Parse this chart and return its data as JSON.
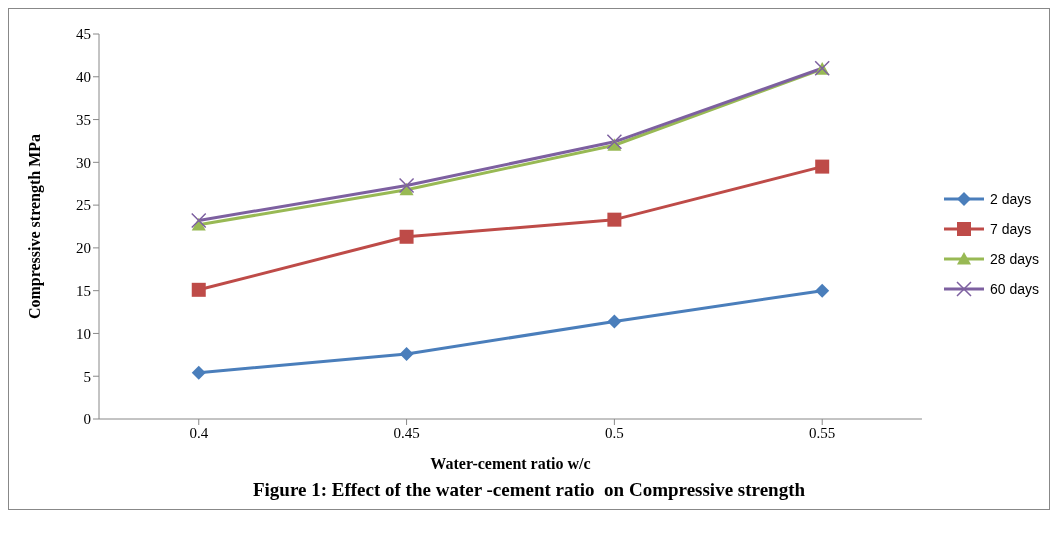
{
  "chart_data": {
    "type": "line",
    "xlabel": "Water-cement ratio w/c",
    "ylabel": "Compressive strength   MPa",
    "categories": [
      "0.4",
      "0.45",
      "0.5",
      "0.55"
    ],
    "series": [
      {
        "name": "2 days",
        "color": "#4a7ebb",
        "marker": "diamond",
        "values": [
          5.4,
          7.6,
          11.4,
          15.0
        ]
      },
      {
        "name": "7 days",
        "color": "#be4b48",
        "marker": "square",
        "values": [
          15.1,
          21.3,
          23.3,
          29.5
        ]
      },
      {
        "name": "28 days",
        "color": "#98b954",
        "marker": "triangle",
        "values": [
          22.7,
          26.8,
          32.0,
          40.9
        ]
      },
      {
        "name": "60 days",
        "color": "#7d60a0",
        "marker": "cross",
        "values": [
          23.2,
          27.3,
          32.4,
          41.0
        ]
      }
    ],
    "ylim": [
      0,
      45
    ],
    "yticks": [
      0,
      5,
      10,
      15,
      20,
      25,
      30,
      35,
      40,
      45
    ],
    "legend": "right",
    "annotations": [
      "Figure 1: Effect of the water -cement ratio  on Compressive strength"
    ]
  }
}
